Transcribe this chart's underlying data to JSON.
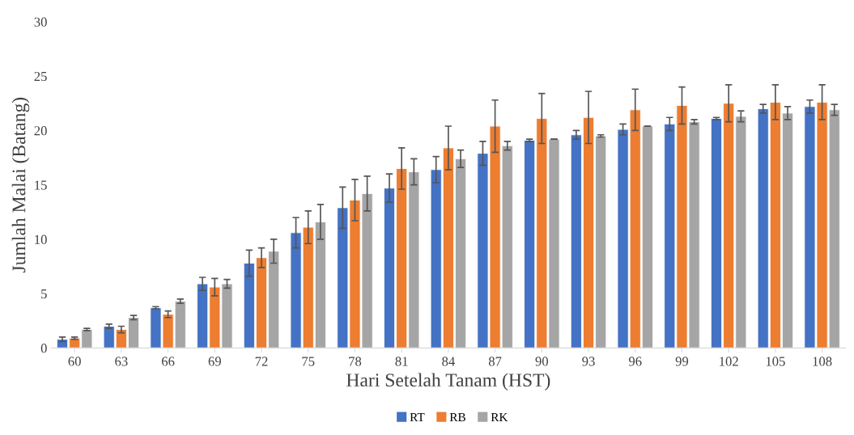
{
  "chart_data": {
    "type": "bar",
    "xlabel": "Hari Setelah Tanam (HST)",
    "ylabel": "Jumlah Malai (Batang)",
    "categories": [
      "60",
      "63",
      "66",
      "69",
      "72",
      "75",
      "78",
      "81",
      "84",
      "87",
      "90",
      "93",
      "96",
      "99",
      "102",
      "105",
      "108"
    ],
    "series": [
      {
        "name": "RT",
        "color": "#4472c4",
        "values": [
          0.8,
          2.0,
          3.7,
          5.9,
          7.8,
          10.6,
          12.9,
          14.7,
          16.4,
          17.9,
          19.1,
          19.6,
          20.1,
          20.6,
          21.1,
          22.0,
          22.2
        ],
        "errors": [
          0.2,
          0.2,
          0.1,
          0.6,
          1.2,
          1.4,
          1.9,
          1.3,
          1.2,
          1.1,
          0.1,
          0.4,
          0.5,
          0.6,
          0.1,
          0.4,
          0.6
        ]
      },
      {
        "name": "RB",
        "color": "#ed7d31",
        "values": [
          0.9,
          1.7,
          3.1,
          5.6,
          8.3,
          11.1,
          13.6,
          16.5,
          18.4,
          20.4,
          21.1,
          21.2,
          21.9,
          22.3,
          22.5,
          22.6,
          22.6
        ],
        "errors": [
          0.1,
          0.3,
          0.3,
          0.8,
          0.9,
          1.5,
          1.9,
          1.9,
          2.0,
          2.4,
          2.3,
          2.4,
          1.9,
          1.7,
          1.7,
          1.6,
          1.6
        ]
      },
      {
        "name": "RK",
        "color": "#a5a5a5",
        "values": [
          1.7,
          2.8,
          4.3,
          5.9,
          8.9,
          11.6,
          14.2,
          16.2,
          17.4,
          18.6,
          19.2,
          19.5,
          20.4,
          20.8,
          21.3,
          21.6,
          21.9
        ],
        "errors": [
          0.1,
          0.2,
          0.2,
          0.4,
          1.1,
          1.6,
          1.6,
          1.2,
          0.8,
          0.4,
          0.0,
          0.1,
          0.0,
          0.2,
          0.5,
          0.6,
          0.5
        ]
      }
    ],
    "ylim": [
      0,
      30
    ],
    "yticks": [
      0,
      5,
      10,
      15,
      20,
      25,
      30
    ],
    "grid": false,
    "legend": "bottom"
  }
}
